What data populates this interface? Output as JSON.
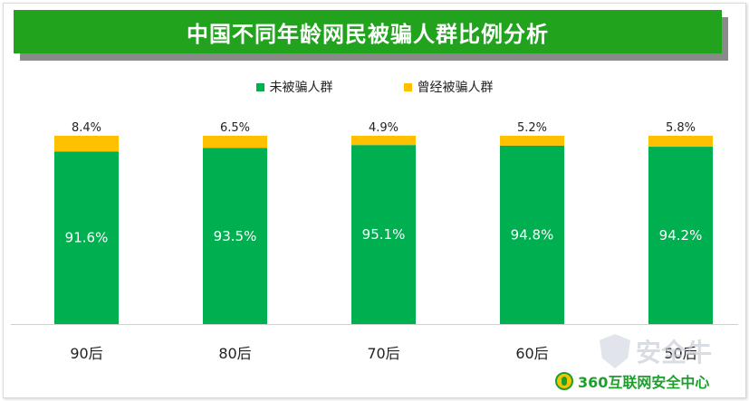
{
  "chart_data": {
    "type": "bar",
    "stacked": true,
    "title": "中国不同年龄网民被骗人群比例分析",
    "categories": [
      "90后",
      "80后",
      "70后",
      "60后",
      "50后"
    ],
    "series": [
      {
        "name": "未被骗人群",
        "color": "#00b050",
        "values": [
          91.6,
          93.5,
          95.1,
          94.8,
          94.2
        ],
        "labels": [
          "91.6%",
          "93.5%",
          "95.1%",
          "94.8%",
          "94.2%"
        ]
      },
      {
        "name": "曾经被骗人群",
        "color": "#ffc000",
        "values": [
          8.4,
          6.5,
          4.9,
          5.2,
          5.8
        ],
        "labels": [
          "8.4%",
          "6.5%",
          "4.9%",
          "5.2%",
          "5.8%"
        ]
      }
    ],
    "ylim": [
      0,
      100
    ],
    "legend_position": "top",
    "grid": false
  },
  "watermark": {
    "text": "安全牛",
    "icon": "shield-icon"
  },
  "brand": {
    "text": "360互联网安全中心",
    "icon": "360-logo-icon",
    "color": "#1e9e2c"
  }
}
